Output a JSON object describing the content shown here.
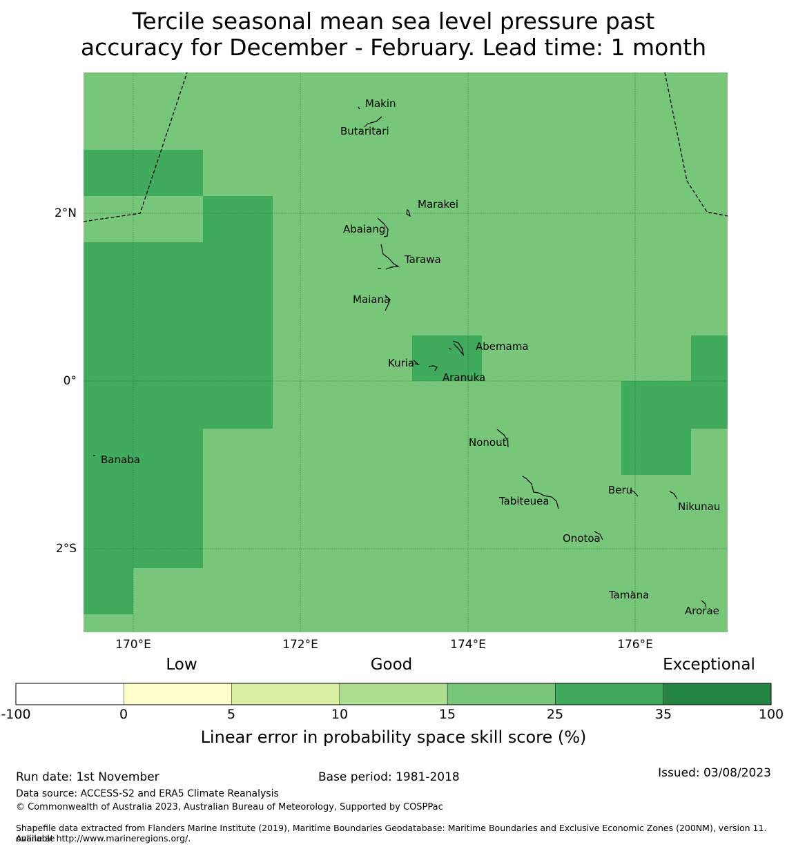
{
  "title": {
    "line1": "Tercile seasonal mean sea level pressure past",
    "line2": "accuracy for December - February. Lead time: 1 month"
  },
  "axes": {
    "y_labels": [
      "2°N",
      "0°",
      "2°S"
    ],
    "x_labels": [
      "170°E",
      "172°E",
      "174°E",
      "176°E"
    ]
  },
  "islands": {
    "makin": "Makin",
    "butaritari": "Butaritari",
    "marakei": "Marakei",
    "abaiang": "Abaiang",
    "tarawa": "Tarawa",
    "maiana": "Maiana",
    "abemama": "Abemama",
    "kuria": "Kuria",
    "aranuka": "Aranuka",
    "nonouti": "Nonouti",
    "banaba": "Banaba",
    "beru": "Beru",
    "tabiteuea": "Tabiteuea",
    "nikunau": "Nikunau",
    "onotoa": "Onotoa",
    "tamana": "Tamana",
    "arorae": "Arorae"
  },
  "colors": {
    "class_15_25": "#78c679",
    "class_25_35": "#41ab5d",
    "class_35_100": "#238443"
  },
  "colorbar": {
    "categories": {
      "low": "Low",
      "good": "Good",
      "exceptional": "Exceptional"
    },
    "ticks": [
      "-100",
      "0",
      "5",
      "10",
      "15",
      "25",
      "35",
      "100"
    ],
    "colors": [
      "#ffffff",
      "#ffffcc",
      "#d9f0a3",
      "#addd8e",
      "#78c679",
      "#41ab5d",
      "#238443"
    ],
    "label": "Linear error in probability space skill score (%)"
  },
  "footer": {
    "run_date": "Run date: 1st November",
    "base_period": "Base period: 1981-2018",
    "issued": "Issued: 03/08/2023",
    "data_source": "Data source: ACCESS-S2 and ERA5 Climate Reanalysis",
    "copyright": "© Commonwealth of Australia 2023, Australian Bureau of Meteorology, Supported by COSPPac",
    "shapefile_line1": "Shapefile data extracted from Flanders Marine Institute (2019), Maritime Boundaries Geodatabase: Maritime Boundaries and Exclusive Economic Zones (200NM), version 11. Available",
    "shapefile_line2": "online at http://www.marineregions.org/."
  }
}
